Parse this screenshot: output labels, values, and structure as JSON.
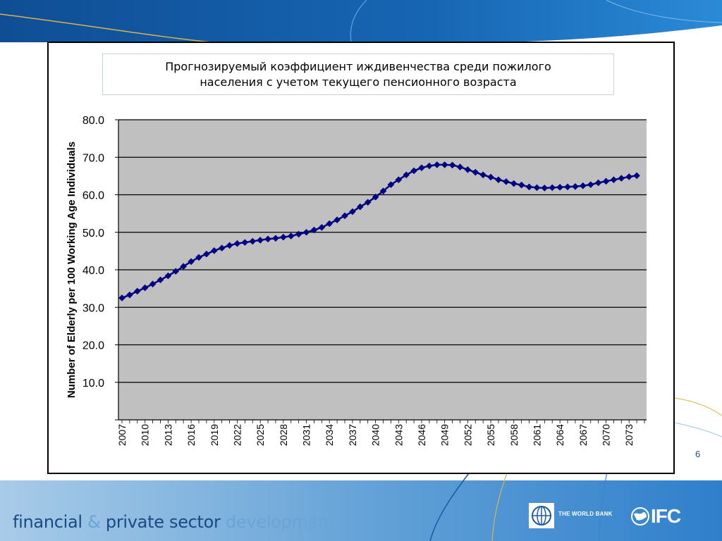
{
  "slide": {
    "page_number": "6",
    "footer": {
      "part1": "financial",
      "amp": "&",
      "part2": "private sector",
      "part3": "development"
    },
    "logos": {
      "world_bank": "THE WORLD BANK",
      "ifc": "IFC"
    }
  },
  "chart_data": {
    "type": "line",
    "title_line1": "Прогнозируемый коэффициент иждивенчества среди пожилого",
    "title_line2": "населения с учетом текущего пенсионного возраста",
    "ylabel": "Number of Elderly per 100 Working Age Individuals",
    "xlabel": "",
    "ylim": [
      0,
      80
    ],
    "yticks": [
      "10.0",
      "20.0",
      "30.0",
      "40.0",
      "50.0",
      "60.0",
      "70.0",
      "80.0"
    ],
    "xtick_labels": [
      "2007",
      "2010",
      "2013",
      "2016",
      "2019",
      "2022",
      "2025",
      "2028",
      "2031",
      "2034",
      "2037",
      "2040",
      "2043",
      "2046",
      "2049",
      "2052",
      "2055",
      "2058",
      "2061",
      "2064",
      "2067",
      "2070",
      "2073"
    ],
    "x_start": 2007,
    "x_end": 2075,
    "grid": true,
    "colors": {
      "plot_bg": "#c0c0c0",
      "series": "#000080",
      "grid": "#000000"
    },
    "series": [
      {
        "values": [
          32.5,
          33.3,
          34.3,
          35.2,
          36.2,
          37.3,
          38.4,
          39.6,
          40.9,
          42.2,
          43.3,
          44.2,
          45.1,
          45.8,
          46.5,
          47.0,
          47.3,
          47.6,
          47.9,
          48.2,
          48.4,
          48.7,
          49.0,
          49.5,
          50.0,
          50.6,
          51.3,
          52.3,
          53.3,
          54.4,
          55.5,
          56.8,
          58.0,
          59.4,
          61.0,
          62.7,
          64.0,
          65.3,
          66.4,
          67.2,
          67.7,
          68.0,
          68.0,
          67.9,
          67.4,
          66.7,
          66.0,
          65.3,
          64.7,
          64.0,
          63.5,
          63.0,
          62.6,
          62.1,
          61.9,
          61.8,
          61.9,
          62.0,
          62.1,
          62.2,
          62.4,
          62.7,
          63.2,
          63.6,
          64.0,
          64.4,
          64.8,
          65.1
        ]
      }
    ]
  }
}
